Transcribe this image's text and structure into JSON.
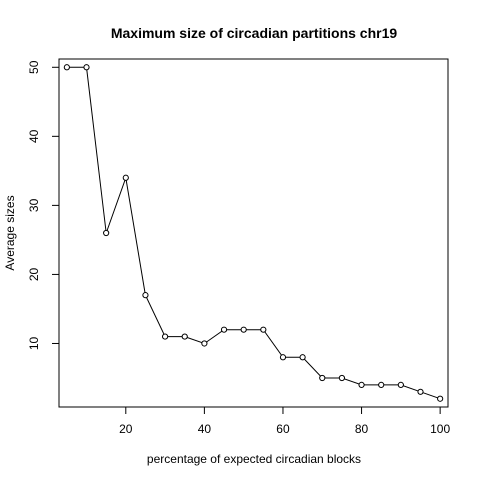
{
  "chart_data": {
    "type": "line",
    "title": "Maximum size of circadian partitions chr19",
    "xlabel": "percentage of expected circadian blocks",
    "ylabel": "Average sizes",
    "xlim": [
      3,
      102
    ],
    "ylim": [
      0.8,
      51.2
    ],
    "xticks": [
      20,
      40,
      60,
      80,
      100
    ],
    "yticks": [
      10,
      20,
      30,
      40,
      50
    ],
    "grid": false,
    "x": [
      5,
      10,
      15,
      20,
      25,
      30,
      35,
      40,
      45,
      50,
      55,
      60,
      65,
      70,
      75,
      80,
      85,
      90,
      95,
      100
    ],
    "y": [
      50,
      50,
      26,
      34,
      17,
      11,
      11,
      10,
      12,
      12,
      12,
      8,
      8,
      5,
      5,
      4,
      4,
      4,
      3,
      2
    ],
    "line_color": "#000000",
    "marker": "open-circle"
  }
}
